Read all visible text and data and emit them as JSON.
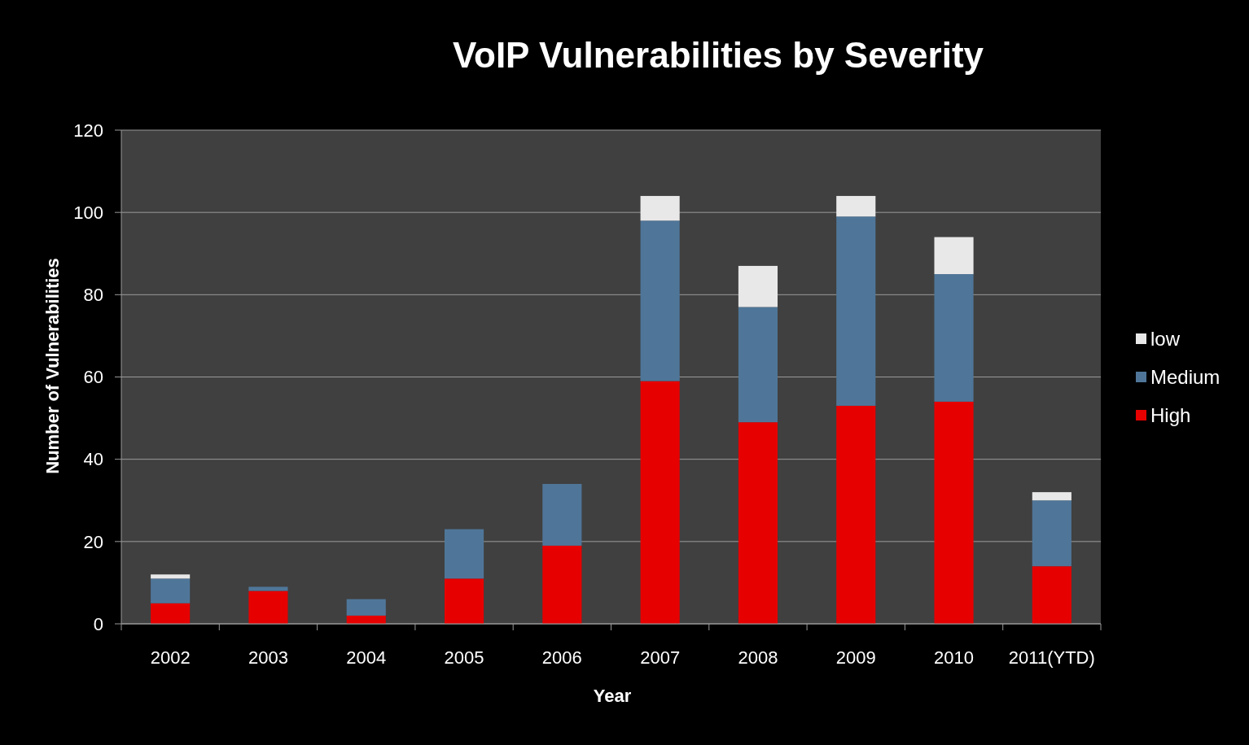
{
  "chart_data": {
    "type": "bar",
    "title": "VoIP Vulnerabilities by Severity",
    "xlabel": "Year",
    "ylabel": "Number of Vulnerabilities",
    "categories": [
      "2002",
      "2003",
      "2004",
      "2005",
      "2006",
      "2007",
      "2008",
      "2009",
      "2010",
      "2011(YTD)"
    ],
    "series": [
      {
        "name": "High",
        "color": "#e60000",
        "values": [
          5,
          8,
          2,
          11,
          19,
          59,
          49,
          53,
          54,
          14
        ]
      },
      {
        "name": "Medium",
        "color": "#4f7699",
        "values": [
          6,
          1,
          4,
          12,
          15,
          39,
          28,
          46,
          31,
          16
        ]
      },
      {
        "name": "low",
        "color": "#e8e8e8",
        "values": [
          1,
          0,
          0,
          0,
          0,
          6,
          10,
          5,
          9,
          2
        ]
      }
    ],
    "stacked": true,
    "ylim": [
      0,
      120
    ],
    "yticks": [
      0,
      20,
      40,
      60,
      80,
      100,
      120
    ],
    "grid": "y",
    "legend": "right"
  }
}
